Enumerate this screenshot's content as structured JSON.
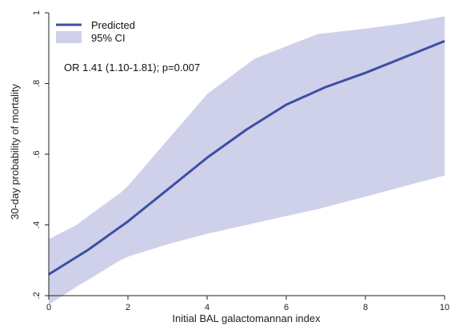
{
  "chart_data": {
    "type": "line",
    "xlabel": "Initial BAL galactomannan index",
    "ylabel": "30-day probability of mortality",
    "xlim": [
      0,
      10
    ],
    "ylim": [
      0.2,
      1
    ],
    "x_ticks": [
      "0",
      "2",
      "4",
      "6",
      "8",
      "10"
    ],
    "y_ticks": [
      ".2",
      ".4",
      ".6",
      ".8",
      "1"
    ],
    "grid": false,
    "legend_position": "top-left",
    "annotation": "OR 1.41 (1.10-1.81); p=0.007",
    "series": [
      {
        "name": "Predicted",
        "x": [
          0,
          1,
          2,
          3,
          4,
          5,
          6,
          6.8,
          7,
          8,
          9,
          10
        ],
        "y": [
          0.26,
          0.33,
          0.41,
          0.5,
          0.59,
          0.67,
          0.74,
          0.78,
          0.79,
          0.83,
          0.875,
          0.92
        ]
      }
    ],
    "band": {
      "name": "95% CI",
      "x": [
        0,
        0.7,
        1,
        1.8,
        2,
        3,
        4,
        5.2,
        6,
        6.8,
        8,
        9,
        10
      ],
      "lower": [
        0.175,
        0.225,
        0.245,
        0.3,
        0.31,
        0.345,
        0.375,
        0.405,
        0.425,
        0.445,
        0.48,
        0.51,
        0.54
      ],
      "upper": [
        0.36,
        0.4,
        0.425,
        0.49,
        0.51,
        0.64,
        0.77,
        0.87,
        0.905,
        0.94,
        0.955,
        0.97,
        0.99
      ]
    },
    "colors": {
      "line": "#3d4fa3",
      "band": "#cfd0ea"
    }
  }
}
